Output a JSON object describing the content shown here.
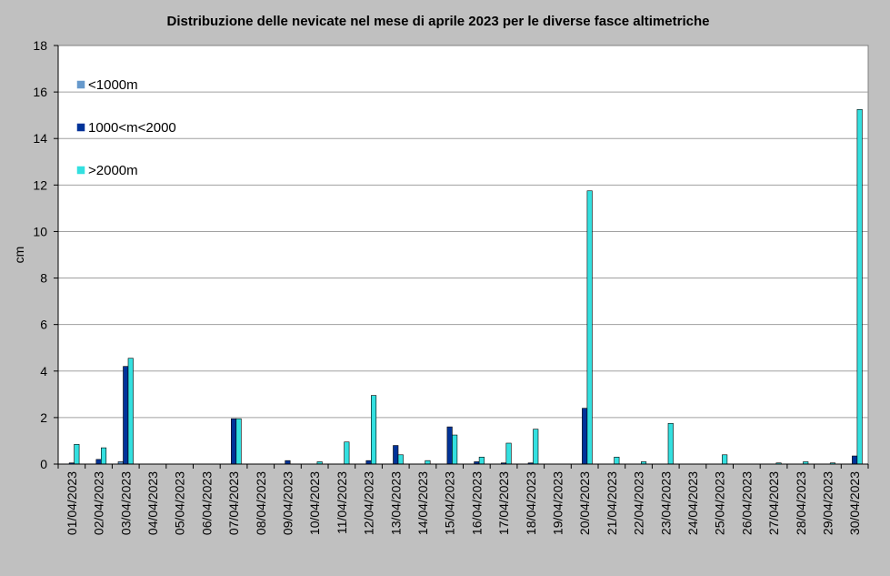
{
  "chart_data": {
    "type": "bar",
    "title": "Distribuzione delle nevicate nel mese di aprile 2023 per le diverse fasce altimetriche",
    "xlabel": "",
    "ylabel": "cm",
    "ylim": [
      0,
      18
    ],
    "yticks": [
      "0",
      "2",
      "4",
      "6",
      "8",
      "10",
      "12",
      "14",
      "16",
      "18"
    ],
    "grid": true,
    "legend_position": "top-left inside plot",
    "categories": [
      "01/04/2023",
      "02/04/2023",
      "03/04/2023",
      "04/04/2023",
      "05/04/2023",
      "06/04/2023",
      "07/04/2023",
      "08/04/2023",
      "09/04/2023",
      "10/04/2023",
      "11/04/2023",
      "12/04/2023",
      "13/04/2023",
      "14/04/2023",
      "15/04/2023",
      "16/04/2023",
      "17/04/2023",
      "18/04/2023",
      "19/04/2023",
      "20/04/2023",
      "21/04/2023",
      "22/04/2023",
      "23/04/2023",
      "24/04/2023",
      "25/04/2023",
      "26/04/2023",
      "27/04/2023",
      "28/04/2023",
      "29/04/2023",
      "30/04/2023"
    ],
    "series": [
      {
        "name": "<1000m",
        "color": "#6699cc",
        "values": [
          0,
          0,
          0.1,
          0,
          0,
          0,
          0,
          0,
          0,
          0,
          0,
          0,
          0,
          0,
          0,
          0,
          0,
          0,
          0,
          0,
          0,
          0,
          0,
          0,
          0,
          0,
          0,
          0,
          0,
          0
        ]
      },
      {
        "name": "1000<m<2000",
        "color": "#003399",
        "values": [
          0.05,
          0.2,
          4.2,
          0,
          0,
          0,
          1.95,
          0,
          0.15,
          0,
          0,
          0.15,
          0.8,
          0,
          1.6,
          0.1,
          0.05,
          0.05,
          0,
          2.4,
          0,
          0,
          0,
          0,
          0,
          0,
          0,
          0,
          0,
          0.35
        ]
      },
      {
        "name": ">2000m",
        "color": "#33e0e0",
        "values": [
          0.85,
          0.7,
          4.55,
          0,
          0,
          0,
          1.95,
          0,
          0,
          0.1,
          0.95,
          2.95,
          0.4,
          0.15,
          1.25,
          0.3,
          0.9,
          1.5,
          0,
          11.75,
          0.3,
          0.1,
          1.75,
          0,
          0.4,
          0,
          0.05,
          0.1,
          0.05,
          15.25
        ]
      }
    ]
  }
}
